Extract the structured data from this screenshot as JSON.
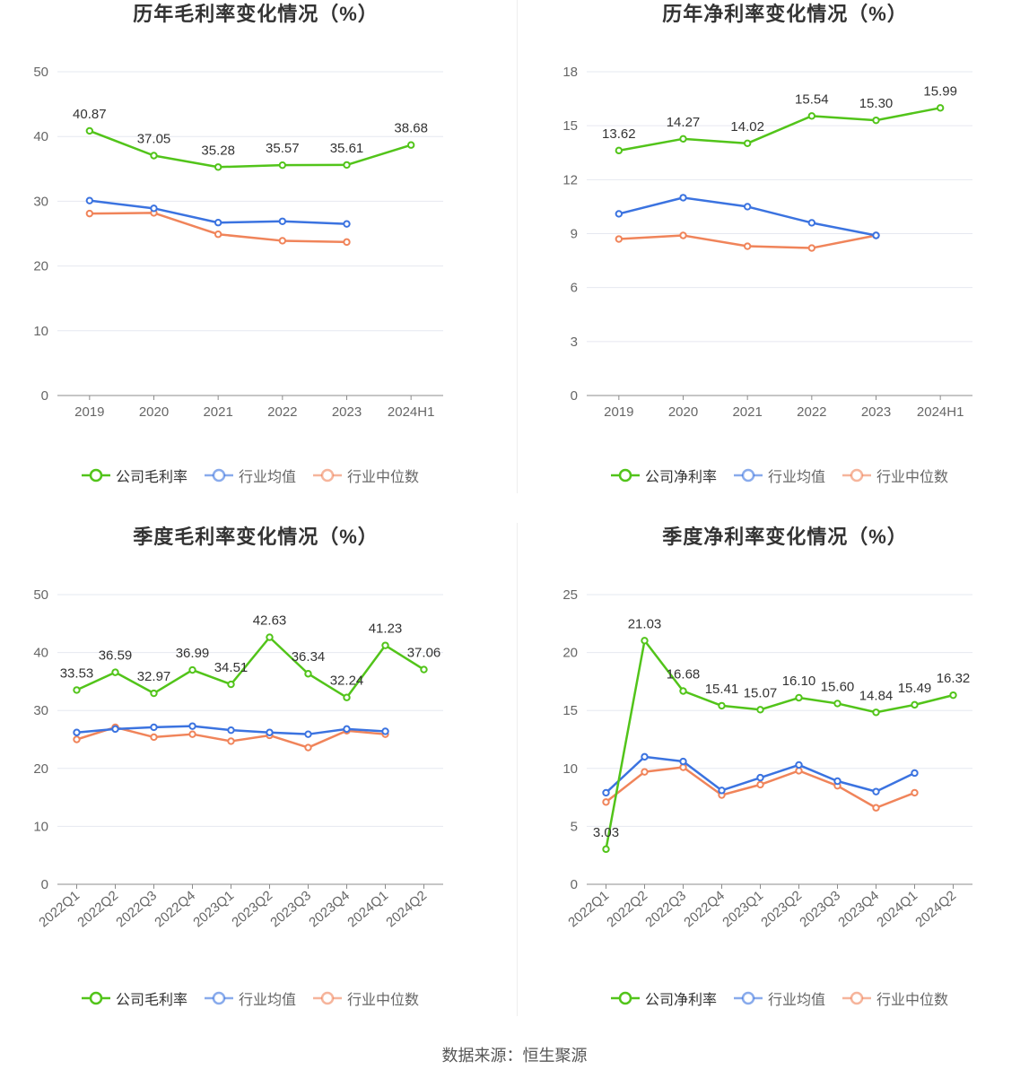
{
  "source": "数据来源：恒生聚源",
  "colors": {
    "company": "#52c41a",
    "industry_avg": "#3b73e0",
    "industry_median": "#f0845a"
  },
  "chart_data": [
    {
      "type": "line",
      "title": "历年毛利率变化情况（%）",
      "categories": [
        "2019",
        "2020",
        "2021",
        "2022",
        "2023",
        "2024H1"
      ],
      "ylim": [
        0,
        50
      ],
      "yticks": [
        0,
        10,
        20,
        30,
        40,
        50
      ],
      "grid": true,
      "legend_position": "bottom",
      "series": [
        {
          "name": "公司毛利率",
          "values": [
            40.87,
            37.05,
            35.28,
            35.57,
            35.61,
            38.68
          ],
          "labels": true
        },
        {
          "name": "行业均值",
          "values": [
            30.1,
            28.9,
            26.7,
            26.9,
            26.5,
            null
          ]
        },
        {
          "name": "行业中位数",
          "values": [
            28.1,
            28.2,
            24.9,
            23.9,
            23.7,
            null
          ]
        }
      ]
    },
    {
      "type": "line",
      "title": "历年净利率变化情况（%）",
      "categories": [
        "2019",
        "2020",
        "2021",
        "2022",
        "2023",
        "2024H1"
      ],
      "ylim": [
        0,
        18
      ],
      "yticks": [
        0,
        3,
        6,
        9,
        12,
        15,
        18
      ],
      "grid": true,
      "legend_position": "bottom",
      "series": [
        {
          "name": "公司净利率",
          "values": [
            13.62,
            14.27,
            14.02,
            15.54,
            15.3,
            15.99
          ],
          "labels": true
        },
        {
          "name": "行业均值",
          "values": [
            10.1,
            11.0,
            10.5,
            9.6,
            8.9,
            null
          ]
        },
        {
          "name": "行业中位数",
          "values": [
            8.7,
            8.9,
            8.3,
            8.2,
            8.9,
            null
          ]
        }
      ]
    },
    {
      "type": "line",
      "title": "季度毛利率变化情况（%）",
      "categories": [
        "2022Q1",
        "2022Q2",
        "2022Q3",
        "2022Q4",
        "2023Q1",
        "2023Q2",
        "2023Q3",
        "2023Q4",
        "2024Q1",
        "2024Q2"
      ],
      "ylim": [
        0,
        50
      ],
      "yticks": [
        0,
        10,
        20,
        30,
        40,
        50
      ],
      "grid": true,
      "legend_position": "bottom",
      "series": [
        {
          "name": "公司毛利率",
          "values": [
            33.53,
            36.59,
            32.97,
            36.99,
            34.51,
            42.63,
            36.34,
            32.24,
            41.23,
            37.06
          ],
          "labels": true
        },
        {
          "name": "行业均值",
          "values": [
            26.2,
            26.8,
            27.1,
            27.3,
            26.6,
            26.2,
            25.9,
            26.8,
            26.4,
            null
          ]
        },
        {
          "name": "行业中位数",
          "values": [
            25.0,
            27.1,
            25.4,
            25.9,
            24.7,
            25.7,
            23.6,
            26.5,
            25.9,
            null
          ]
        }
      ]
    },
    {
      "type": "line",
      "title": "季度净利率变化情况（%）",
      "categories": [
        "2022Q1",
        "2022Q2",
        "2022Q3",
        "2022Q4",
        "2023Q1",
        "2023Q2",
        "2023Q3",
        "2023Q4",
        "2024Q1",
        "2024Q2"
      ],
      "ylim": [
        0,
        25
      ],
      "yticks": [
        0,
        5,
        10,
        15,
        20,
        25
      ],
      "grid": true,
      "legend_position": "bottom",
      "series": [
        {
          "name": "公司净利率",
          "values": [
            3.03,
            21.03,
            16.68,
            15.41,
            15.07,
            16.1,
            15.6,
            14.84,
            15.49,
            16.32
          ],
          "labels": true
        },
        {
          "name": "行业均值",
          "values": [
            7.9,
            11.0,
            10.6,
            8.1,
            9.2,
            10.3,
            8.9,
            8.0,
            9.6,
            null
          ]
        },
        {
          "name": "行业中位数",
          "values": [
            7.1,
            9.7,
            10.1,
            7.7,
            8.6,
            9.8,
            8.5,
            6.6,
            7.9,
            null
          ]
        }
      ]
    }
  ]
}
